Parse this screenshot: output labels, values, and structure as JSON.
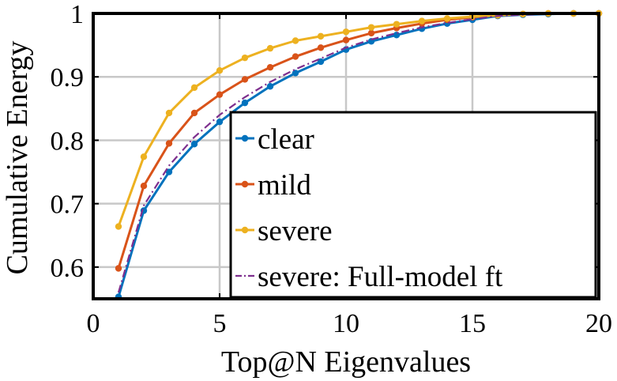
{
  "chart_data": {
    "type": "line",
    "title": "",
    "xlabel": "Top@N Eigenvalues",
    "ylabel": "Cumulative Energy",
    "xlim": [
      0,
      20
    ],
    "ylim": [
      0.55,
      1.0
    ],
    "xticks": [
      "0",
      "5",
      "10",
      "15",
      "20"
    ],
    "yticks": [
      "0.6",
      "0.7",
      "0.8",
      "0.9",
      "1"
    ],
    "grid": true,
    "legend_position": "bottom-right",
    "x": [
      1,
      2,
      3,
      4,
      5,
      6,
      7,
      8,
      9,
      10,
      11,
      12,
      13,
      14,
      15,
      16,
      17,
      18,
      19,
      20
    ],
    "series": [
      {
        "name": "clear",
        "color": "#0072BD",
        "style": "solid-marker",
        "values": [
          0.553,
          0.689,
          0.75,
          0.794,
          0.829,
          0.859,
          0.885,
          0.906,
          0.924,
          0.943,
          0.956,
          0.966,
          0.976,
          0.984,
          0.99,
          0.996,
          0.998,
          0.999,
          1.0,
          1.0
        ]
      },
      {
        "name": "mild",
        "color": "#D95319",
        "style": "solid-marker",
        "values": [
          0.598,
          0.728,
          0.795,
          0.843,
          0.872,
          0.896,
          0.915,
          0.932,
          0.946,
          0.958,
          0.969,
          0.977,
          0.984,
          0.99,
          0.994,
          0.997,
          0.999,
          1.0,
          1.0,
          1.0
        ]
      },
      {
        "name": "severe",
        "color": "#EDB120",
        "style": "solid-marker",
        "values": [
          0.664,
          0.774,
          0.843,
          0.883,
          0.91,
          0.93,
          0.945,
          0.957,
          0.964,
          0.971,
          0.978,
          0.983,
          0.988,
          0.992,
          0.995,
          0.997,
          0.999,
          1.0,
          1.0,
          1.0
        ]
      },
      {
        "name": "severe: Full-model ft",
        "color": "#7E2F8E",
        "style": "dash-dot",
        "values": [
          0.56,
          0.697,
          0.76,
          0.805,
          0.84,
          0.868,
          0.892,
          0.912,
          0.929,
          0.946,
          0.959,
          0.969,
          0.978,
          0.985,
          0.991,
          0.996,
          0.998,
          0.999,
          1.0,
          1.0
        ]
      }
    ]
  }
}
